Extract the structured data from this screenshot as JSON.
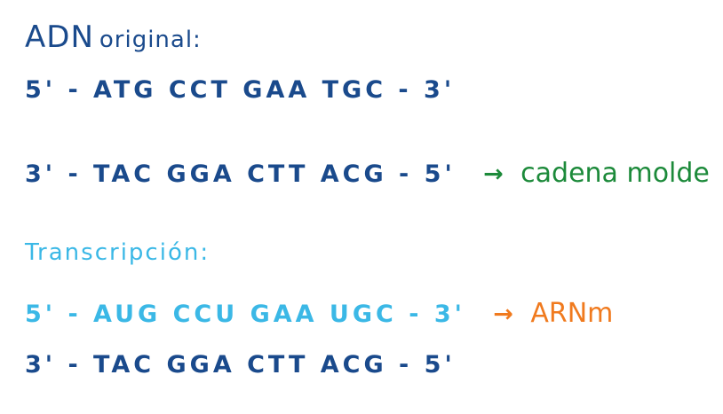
{
  "heading": {
    "main": "ADN",
    "rest": "original:"
  },
  "dna": {
    "coding_strand": "5' - ATG CCT GAA TGC - 3'",
    "template_strand": "3' - TAC GGA CTT ACG - 5'",
    "template_label": "cadena molde"
  },
  "transcription": {
    "title": "Transcripción:",
    "mrna_strand": "5' - AUG CCU GAA UGC - 3'",
    "mrna_label": "ARNm",
    "template_strand": "3' - TAC GGA CTT ACG - 5'"
  },
  "arrow": "→",
  "colors": {
    "dark_blue": "#1a4a8c",
    "light_blue": "#3bb8e6",
    "green": "#1c8a3a",
    "orange": "#f07a1e"
  }
}
